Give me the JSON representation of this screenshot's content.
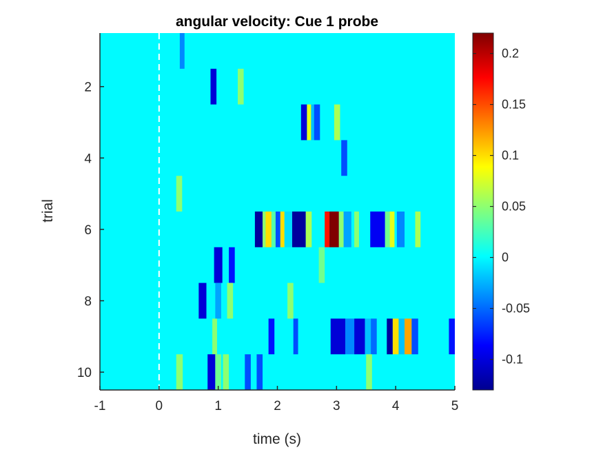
{
  "chart_data": {
    "type": "heatmap",
    "title": "angular velocity: Cue 1 probe",
    "xlabel": "time (s)",
    "ylabel": "trial",
    "xlim": [
      -1,
      5
    ],
    "ylim": [
      0.5,
      10.5
    ],
    "x_ticks": [
      -1,
      0,
      1,
      2,
      3,
      4,
      5
    ],
    "x_tick_labels": [
      "-1",
      "0",
      "1",
      "2",
      "3",
      "4",
      "5"
    ],
    "y_ticks": [
      2,
      4,
      6,
      8,
      10
    ],
    "y_tick_labels": [
      "2",
      "4",
      "6",
      "8",
      "10"
    ],
    "y_direction": "reverse",
    "background_value": 0,
    "colormap": "jet",
    "clim": [
      -0.13,
      0.22
    ],
    "colorbar_ticks": [
      -0.1,
      -0.05,
      0,
      0.05,
      0.1,
      0.15,
      0.2
    ],
    "colorbar_tick_labels": [
      "-0.1",
      "-0.05",
      "0",
      "0.05",
      "0.1",
      "0.15",
      "0.2"
    ],
    "vertical_marker_x": 0,
    "trials": [
      {
        "trial": 1,
        "events": [
          [
            0.35,
            0.43,
            -0.04
          ]
        ]
      },
      {
        "trial": 2,
        "events": [
          [
            0.87,
            0.97,
            -0.1
          ],
          [
            1.33,
            1.43,
            0.05
          ]
        ]
      },
      {
        "trial": 3,
        "events": [
          [
            2.4,
            2.5,
            -0.1
          ],
          [
            2.5,
            2.57,
            0.08
          ],
          [
            2.57,
            2.62,
            -0.02
          ],
          [
            2.62,
            2.72,
            -0.06
          ],
          [
            2.96,
            3.06,
            0.06
          ]
        ]
      },
      {
        "trial": 4,
        "events": [
          [
            3.08,
            3.18,
            -0.06
          ]
        ]
      },
      {
        "trial": 5,
        "events": [
          [
            0.29,
            0.39,
            0.05
          ]
        ]
      },
      {
        "trial": 6,
        "events": [
          [
            1.62,
            1.75,
            -0.12
          ],
          [
            1.75,
            1.8,
            0.05
          ],
          [
            1.8,
            1.9,
            0.1
          ],
          [
            1.9,
            1.97,
            0.03
          ],
          [
            1.97,
            2.05,
            -0.06
          ],
          [
            2.05,
            2.12,
            0.1
          ],
          [
            2.12,
            2.25,
            -0.01
          ],
          [
            2.25,
            2.48,
            -0.12
          ],
          [
            2.48,
            2.58,
            0.06
          ],
          [
            2.8,
            2.88,
            0.17
          ],
          [
            2.88,
            3.04,
            0.22
          ],
          [
            3.04,
            3.12,
            0.05
          ],
          [
            3.12,
            3.25,
            -0.03
          ],
          [
            3.3,
            3.38,
            0.05
          ],
          [
            3.57,
            3.82,
            -0.09
          ],
          [
            3.82,
            3.9,
            0.04
          ],
          [
            3.9,
            3.98,
            0.08
          ],
          [
            4.02,
            4.15,
            -0.04
          ],
          [
            4.33,
            4.42,
            0.06
          ]
        ]
      },
      {
        "trial": 7,
        "events": [
          [
            0.93,
            1.07,
            -0.1
          ],
          [
            1.18,
            1.28,
            -0.08
          ],
          [
            2.7,
            2.8,
            0.04
          ]
        ]
      },
      {
        "trial": 8,
        "events": [
          [
            0.67,
            0.8,
            -0.1
          ],
          [
            0.95,
            1.05,
            -0.03
          ],
          [
            1.15,
            1.25,
            0.05
          ],
          [
            2.17,
            2.27,
            0.05
          ]
        ]
      },
      {
        "trial": 9,
        "events": [
          [
            0.9,
            0.98,
            0.05
          ],
          [
            1.85,
            1.95,
            -0.08
          ],
          [
            2.27,
            2.35,
            -0.06
          ],
          [
            2.9,
            3.15,
            -0.1
          ],
          [
            3.15,
            3.3,
            -0.04
          ],
          [
            3.3,
            3.48,
            -0.1
          ],
          [
            3.48,
            3.58,
            -0.02
          ],
          [
            3.58,
            3.68,
            -0.05
          ],
          [
            3.85,
            3.95,
            -0.12
          ],
          [
            3.95,
            4.05,
            0.1
          ],
          [
            4.05,
            4.15,
            -0.02
          ],
          [
            4.15,
            4.27,
            0.12
          ],
          [
            4.27,
            4.38,
            -0.06
          ],
          [
            4.9,
            5.0,
            -0.08
          ]
        ]
      },
      {
        "trial": 10,
        "events": [
          [
            0.29,
            0.4,
            0.05
          ],
          [
            0.82,
            0.95,
            -0.1
          ],
          [
            0.95,
            1.05,
            0.04
          ],
          [
            1.08,
            1.18,
            0.05
          ],
          [
            1.2,
            1.3,
            0.0
          ],
          [
            1.45,
            1.55,
            -0.06
          ],
          [
            1.65,
            1.75,
            -0.06
          ],
          [
            3.5,
            3.6,
            0.05
          ]
        ]
      }
    ]
  }
}
